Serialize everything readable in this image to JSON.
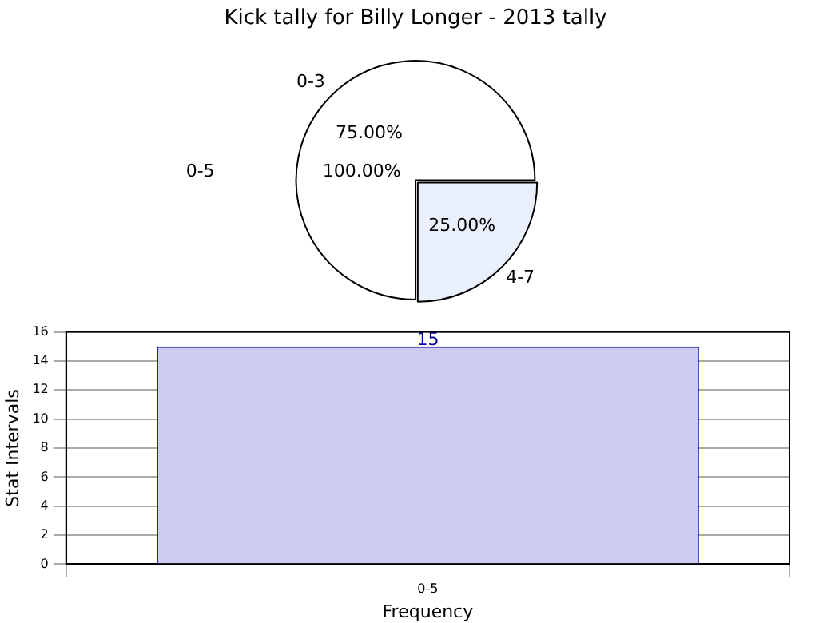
{
  "chart_data": [
    {
      "type": "pie",
      "title": "Kick tally for Billy Longer - 2013 tally",
      "categories": [
        "0-3",
        "4-7"
      ],
      "values": [
        75,
        25
      ],
      "colors": [
        "#ffffff",
        "#eaf0fb"
      ],
      "value_labels": [
        "75.00%",
        "25.00%"
      ],
      "annotations": [
        "0-5",
        "100.00%"
      ]
    },
    {
      "type": "bar",
      "categories": [
        "0-5"
      ],
      "values": [
        15
      ],
      "color": "#ccccee",
      "data_labels": true,
      "xlabel": "Frequency",
      "ylabel": "Stat Intervals",
      "ylim": [
        0,
        16
      ],
      "yticks": [
        0,
        2,
        4,
        6,
        8,
        10,
        12,
        14,
        16
      ],
      "grid": true
    }
  ]
}
